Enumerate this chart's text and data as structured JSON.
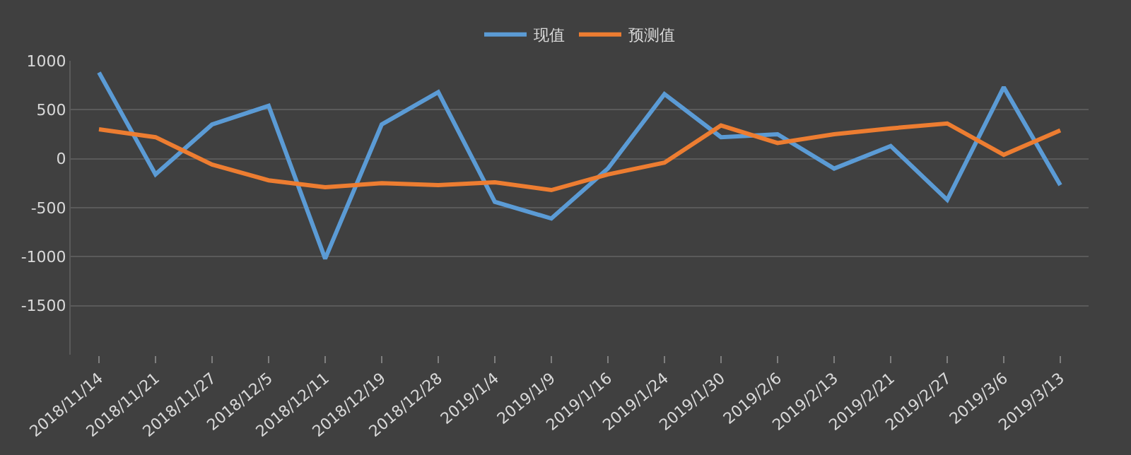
{
  "chart_data": {
    "type": "line",
    "categories": [
      "2018/11/14",
      "2018/11/21",
      "2018/11/27",
      "2018/12/5",
      "2018/12/11",
      "2018/12/19",
      "2018/12/28",
      "2019/1/4",
      "2019/1/9",
      "2019/1/16",
      "2019/1/24",
      "2019/1/30",
      "2019/2/6",
      "2019/2/13",
      "2019/2/21",
      "2019/2/27",
      "2019/3/6",
      "2019/3/13"
    ],
    "series": [
      {
        "name": "现值",
        "color": "#5b9bd5",
        "values": [
          880,
          -160,
          350,
          540,
          -1020,
          350,
          680,
          -440,
          -610,
          -100,
          660,
          220,
          250,
          -100,
          130,
          -420,
          730,
          -270
        ]
      },
      {
        "name": "预测值",
        "color": "#ed7d31",
        "values": [
          300,
          220,
          -60,
          -220,
          -290,
          -250,
          -270,
          -240,
          -320,
          -160,
          -40,
          340,
          160,
          250,
          310,
          360,
          40,
          290
        ]
      }
    ],
    "ylim": [
      -2000,
      1000
    ],
    "yticks": [
      -1500,
      -1000,
      -500,
      0,
      500,
      1000
    ],
    "grid": "y",
    "legend": "top",
    "marker": "none",
    "line_style": "solid"
  }
}
